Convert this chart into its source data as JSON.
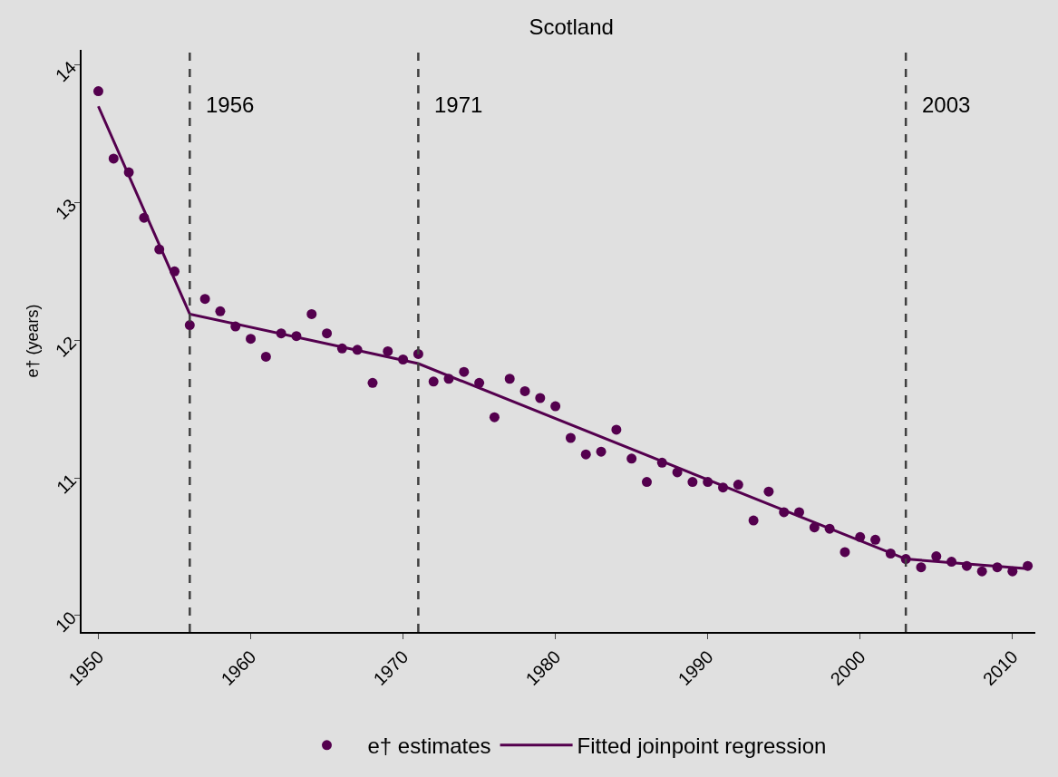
{
  "chart_data": {
    "type": "scatter",
    "title": "Scotland",
    "ylabel": "e† (years)",
    "x": [
      1950,
      1951,
      1952,
      1953,
      1954,
      1955,
      1956,
      1957,
      1958,
      1959,
      1960,
      1961,
      1962,
      1963,
      1964,
      1965,
      1966,
      1967,
      1968,
      1969,
      1970,
      1971,
      1972,
      1973,
      1974,
      1975,
      1976,
      1977,
      1978,
      1979,
      1980,
      1981,
      1982,
      1983,
      1984,
      1985,
      1986,
      1987,
      1988,
      1989,
      1990,
      1991,
      1992,
      1993,
      1994,
      1995,
      1996,
      1997,
      1998,
      1999,
      2000,
      2001,
      2002,
      2003,
      2004,
      2005,
      2006,
      2007,
      2008,
      2009,
      2010,
      2011
    ],
    "series": [
      {
        "name": "e† estimates",
        "marker": "circle",
        "color": "#54004e",
        "values": [
          13.81,
          13.32,
          13.22,
          12.89,
          12.66,
          12.5,
          12.11,
          12.3,
          12.21,
          12.1,
          12.01,
          11.88,
          12.05,
          12.03,
          12.19,
          12.05,
          11.94,
          11.93,
          11.69,
          11.92,
          11.86,
          11.9,
          11.7,
          11.72,
          11.77,
          11.69,
          11.44,
          11.72,
          11.63,
          11.58,
          11.52,
          11.29,
          11.17,
          11.19,
          11.35,
          11.14,
          10.97,
          11.11,
          11.04,
          10.97,
          10.97,
          10.93,
          10.95,
          10.69,
          10.9,
          10.75,
          10.75,
          10.64,
          10.63,
          10.46,
          10.57,
          10.55,
          10.45,
          10.41,
          10.35,
          10.43,
          10.39,
          10.36,
          10.32,
          10.35,
          10.32,
          10.36
        ]
      },
      {
        "name": "Fitted joinpoint regression",
        "type": "line",
        "marker": "none",
        "line_style": "solid",
        "color": "#54004e",
        "x": [
          1950,
          1956,
          1971,
          2003,
          2011
        ],
        "values": [
          13.7,
          12.19,
          11.83,
          10.41,
          10.34
        ]
      }
    ],
    "xlim": [
      1948.9,
      2011.5
    ],
    "xticks": [
      1950,
      1960,
      1970,
      1980,
      1990,
      2000,
      2010
    ],
    "ylim": [
      9.88,
      14.11
    ],
    "yticks": [
      10,
      11,
      12,
      13,
      14
    ],
    "ref_lines": [
      {
        "axis": "x",
        "value": 1956,
        "label": "1956",
        "line_style": "dashed",
        "color": "#404040"
      },
      {
        "axis": "x",
        "value": 1971,
        "label": "1971",
        "line_style": "dashed",
        "color": "#404040"
      },
      {
        "axis": "x",
        "value": 2003,
        "label": "2003",
        "line_style": "dashed",
        "color": "#404040"
      }
    ],
    "grid": false,
    "legend": "bottom"
  }
}
